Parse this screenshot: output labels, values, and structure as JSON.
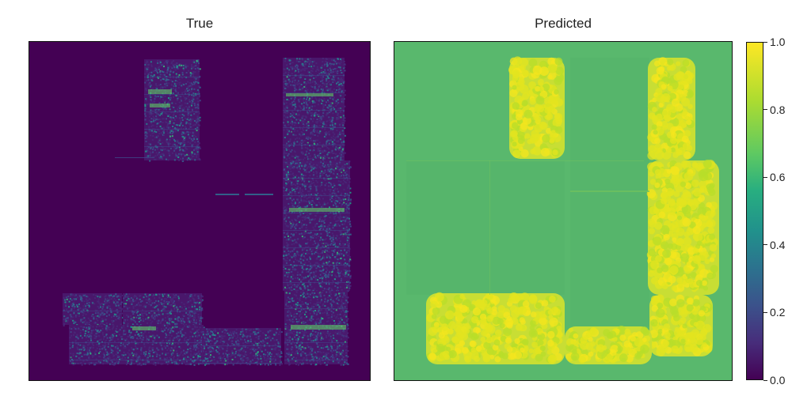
{
  "chart_data": [
    {
      "type": "heatmap",
      "title": "True",
      "colormap": "viridis",
      "value_range": [
        0,
        1
      ]
    },
    {
      "type": "heatmap",
      "title": "Predicted",
      "colormap": "viridis",
      "value_range": [
        0,
        1
      ]
    }
  ],
  "colorbar": {
    "ticks": [
      "0.0",
      "0.2",
      "0.4",
      "0.6",
      "0.8",
      "1.0"
    ],
    "tick_values": [
      0.0,
      0.2,
      0.4,
      0.6,
      0.8,
      1.0
    ],
    "range": [
      0,
      1
    ]
  }
}
